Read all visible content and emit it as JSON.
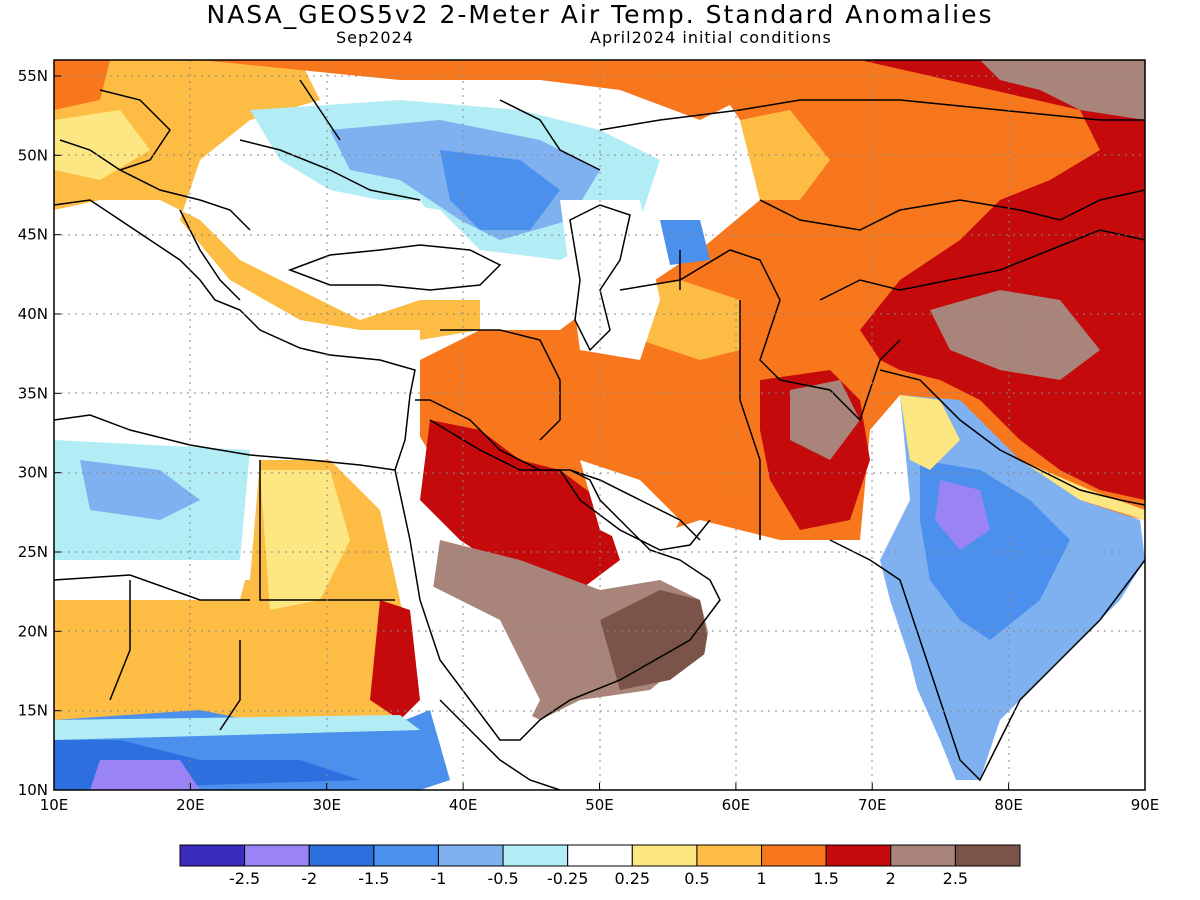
{
  "header": {
    "title": "NASA_GEOS5v2 2-Meter Air Temp. Standard Anomalies",
    "subtitle_left": "Sep2024",
    "subtitle_right": "April2024 initial conditions"
  },
  "map": {
    "lon_range": [
      10,
      90
    ],
    "lat_range": [
      10,
      56
    ],
    "x_ticks": [
      "10E",
      "20E",
      "30E",
      "40E",
      "50E",
      "60E",
      "70E",
      "80E",
      "90E"
    ],
    "y_ticks": [
      "10N",
      "15N",
      "20N",
      "25N",
      "30N",
      "35N",
      "40N",
      "45N",
      "50N",
      "55N"
    ],
    "gridlines": true
  },
  "colorbar": {
    "colors": [
      "#3b2bbf",
      "#9a84f5",
      "#2e6fe0",
      "#4a90ec",
      "#7fb0f0",
      "#b2ecf4",
      "#ffffff",
      "#fde782",
      "#fdbd45",
      "#f8761c",
      "#c40a0a",
      "#a9847a",
      "#7a5448"
    ],
    "labels": [
      "-2.5",
      "-2",
      "-1.5",
      "-1",
      "-0.5",
      "-0.25",
      "0.25",
      "0.5",
      "1",
      "1.5",
      "2",
      "2.5"
    ]
  }
}
